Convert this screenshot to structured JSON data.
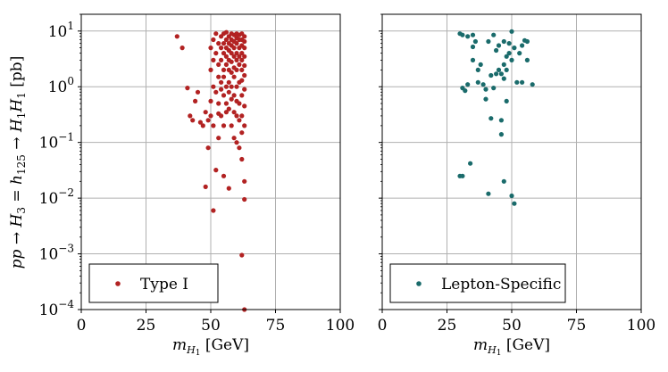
{
  "chart_data": [
    {
      "type": "scatter",
      "panel": "left",
      "series": [
        {
          "name": "Type I",
          "color": "#b22222",
          "points": [
            [
              37,
              8
            ],
            [
              39,
              5
            ],
            [
              41,
              0.95
            ],
            [
              42,
              0.3
            ],
            [
              43,
              0.25
            ],
            [
              44,
              0.55
            ],
            [
              45,
              0.8
            ],
            [
              46,
              0.23
            ],
            [
              47,
              0.2
            ],
            [
              48,
              0.35
            ],
            [
              48,
              0.016
            ],
            [
              49,
              0.25
            ],
            [
              49,
              0.08
            ],
            [
              50,
              2
            ],
            [
              50,
              5
            ],
            [
              50,
              0.3
            ],
            [
              51,
              0.2
            ],
            [
              51,
              1
            ],
            [
              51,
              3
            ],
            [
              51,
              7
            ],
            [
              51,
              0.006
            ],
            [
              52,
              0.8
            ],
            [
              52,
              0.032
            ],
            [
              52,
              4
            ],
            [
              52,
              9
            ],
            [
              53,
              0.5
            ],
            [
              53,
              1.5
            ],
            [
              53,
              2.5
            ],
            [
              53,
              6
            ],
            [
              53,
              0.33
            ],
            [
              54,
              0.3
            ],
            [
              54,
              0.9
            ],
            [
              54,
              1.2
            ],
            [
              54,
              3
            ],
            [
              54,
              5
            ],
            [
              54,
              8
            ],
            [
              55,
              0.7
            ],
            [
              55,
              1.5
            ],
            [
              55,
              2
            ],
            [
              55,
              4
            ],
            [
              55,
              6
            ],
            [
              55,
              9
            ],
            [
              55,
              0.2
            ],
            [
              56,
              0.5
            ],
            [
              56,
              1
            ],
            [
              56,
              2.5
            ],
            [
              56,
              3.5
            ],
            [
              56,
              5
            ],
            [
              56,
              7
            ],
            [
              56,
              9.5
            ],
            [
              57,
              0.4
            ],
            [
              57,
              0.8
            ],
            [
              57,
              1.2
            ],
            [
              57,
              2
            ],
            [
              57,
              3
            ],
            [
              57,
              4.5
            ],
            [
              57,
              6
            ],
            [
              57,
              8
            ],
            [
              57,
              0.015
            ],
            [
              58,
              0.2
            ],
            [
              58,
              0.6
            ],
            [
              58,
              1
            ],
            [
              58,
              1.8
            ],
            [
              58,
              2.8
            ],
            [
              58,
              4
            ],
            [
              58,
              5.5
            ],
            [
              58,
              7
            ],
            [
              58,
              9
            ],
            [
              59,
              0.12
            ],
            [
              59,
              0.35
            ],
            [
              59,
              0.7
            ],
            [
              59,
              1.5
            ],
            [
              59,
              2.2
            ],
            [
              59,
              3.5
            ],
            [
              59,
              5
            ],
            [
              59,
              6.5
            ],
            [
              59,
              8.5
            ],
            [
              60,
              0.1
            ],
            [
              60,
              0.3
            ],
            [
              60,
              0.55
            ],
            [
              60,
              1
            ],
            [
              60,
              2
            ],
            [
              60,
              3
            ],
            [
              60,
              4
            ],
            [
              60,
              6
            ],
            [
              60,
              7.5
            ],
            [
              60,
              9
            ],
            [
              61,
              0.08
            ],
            [
              61,
              0.25
            ],
            [
              61,
              0.5
            ],
            [
              61,
              1.2
            ],
            [
              61,
              2.5
            ],
            [
              61,
              3.5
            ],
            [
              61,
              5
            ],
            [
              61,
              7
            ],
            [
              61,
              8.5
            ],
            [
              62,
              0.05
            ],
            [
              62,
              0.15
            ],
            [
              62,
              0.3
            ],
            [
              62,
              0.7
            ],
            [
              62,
              1.3
            ],
            [
              62,
              2
            ],
            [
              62,
              3
            ],
            [
              62,
              4
            ],
            [
              62,
              5.5
            ],
            [
              62,
              7
            ],
            [
              62,
              9
            ],
            [
              62,
              0.00095
            ],
            [
              63,
              0.02
            ],
            [
              63,
              0.2
            ],
            [
              63,
              0.45
            ],
            [
              63,
              0.9
            ],
            [
              63,
              1.6
            ],
            [
              63,
              2.4
            ],
            [
              63,
              3.5
            ],
            [
              63,
              5
            ],
            [
              63,
              6.5
            ],
            [
              63,
              8
            ],
            [
              63,
              0.0095
            ],
            [
              63,
              0.0001
            ],
            [
              53,
              0.12
            ],
            [
              55,
              0.025
            ],
            [
              50,
              0.55
            ],
            [
              56,
              0.35
            ]
          ]
        }
      ],
      "xlabel": "m_H1 [GeV]",
      "ylabel": "pp → H3 = h125 → H1H1 [pb]",
      "xlim": [
        0,
        100
      ],
      "ylim": [
        0.0001,
        20
      ],
      "yscale": "log",
      "grid": true,
      "legend_position": "lower-left"
    },
    {
      "type": "scatter",
      "panel": "right",
      "series": [
        {
          "name": "Lepton-Specific",
          "color": "#1a6b6b",
          "points": [
            [
              30,
              9
            ],
            [
              31,
              8.5
            ],
            [
              33,
              8
            ],
            [
              35,
              8.5
            ],
            [
              30,
              0.025
            ],
            [
              31,
              0.025
            ],
            [
              31,
              0.95
            ],
            [
              32,
              0.85
            ],
            [
              33,
              1.1
            ],
            [
              34,
              0.042
            ],
            [
              35,
              3
            ],
            [
              35,
              5.2
            ],
            [
              36,
              6.5
            ],
            [
              37,
              1.2
            ],
            [
              37,
              2
            ],
            [
              38,
              2.5
            ],
            [
              39,
              1.1
            ],
            [
              40,
              0.9
            ],
            [
              40,
              0.6
            ],
            [
              41,
              6.5
            ],
            [
              41,
              0.012
            ],
            [
              42,
              1.6
            ],
            [
              42,
              0.27
            ],
            [
              43,
              8.5
            ],
            [
              43,
              0.95
            ],
            [
              44,
              4.5
            ],
            [
              44,
              1.7
            ],
            [
              45,
              2
            ],
            [
              45,
              5.5
            ],
            [
              46,
              1.7
            ],
            [
              46,
              0.25
            ],
            [
              46,
              0.14
            ],
            [
              47,
              0.02
            ],
            [
              47,
              1.4
            ],
            [
              47,
              2.5
            ],
            [
              47,
              6.5
            ],
            [
              48,
              0.55
            ],
            [
              48,
              2
            ],
            [
              48,
              3.5
            ],
            [
              49,
              4
            ],
            [
              49,
              6
            ],
            [
              50,
              9.8
            ],
            [
              50,
              0.011
            ],
            [
              50,
              3
            ],
            [
              51,
              0.008
            ],
            [
              51,
              5
            ],
            [
              52,
              1.2
            ],
            [
              53,
              4
            ],
            [
              54,
              5.5
            ],
            [
              54,
              1.2
            ],
            [
              55,
              6.8
            ],
            [
              56,
              6.5
            ],
            [
              56,
              3
            ],
            [
              58,
              1.1
            ]
          ]
        }
      ],
      "xlabel": "m_H1 [GeV]",
      "xlim": [
        0,
        100
      ],
      "ylim": [
        0.0001,
        20
      ],
      "yscale": "log",
      "grid": true,
      "legend_position": "lower-left"
    }
  ],
  "x_tick_labels": [
    "0",
    "25",
    "50",
    "75",
    "100"
  ],
  "y_tick_labels": [
    "10^-4",
    "10^-3",
    "10^-2",
    "10^-1",
    "10^0",
    "10^1"
  ]
}
